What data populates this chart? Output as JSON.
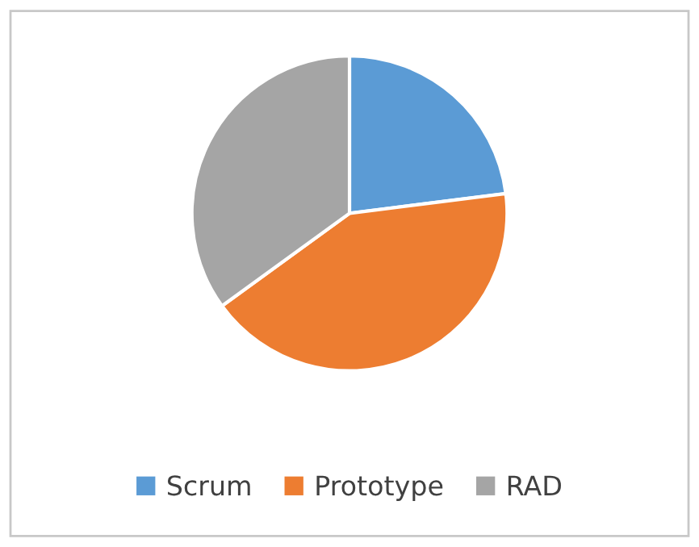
{
  "chart_data": {
    "type": "pie",
    "categories": [
      "Scrum",
      "Prototype",
      "RAD"
    ],
    "values": [
      23,
      42,
      35
    ],
    "colors": [
      "#5b9bd5",
      "#ed7d31",
      "#a5a5a5"
    ],
    "legend": "bottom"
  }
}
